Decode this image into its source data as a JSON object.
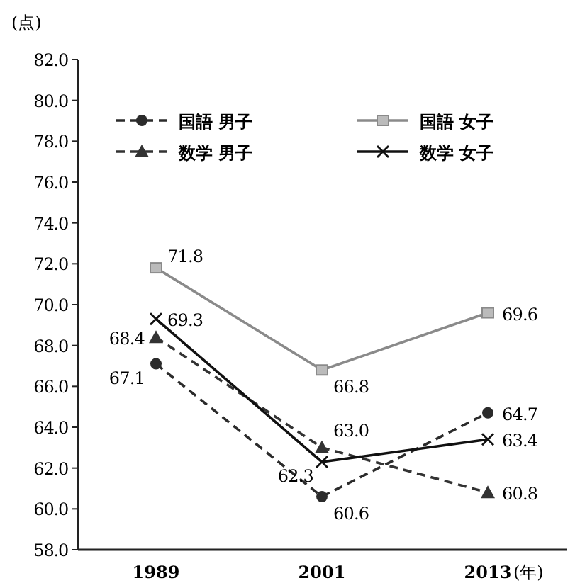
{
  "chart_data": {
    "type": "line",
    "xlabel": "(年)",
    "ylabel": "(点)",
    "categories": [
      "1989",
      "2001",
      "2013"
    ],
    "ylim": [
      58,
      82
    ],
    "yticks": [
      {
        "value": 58,
        "label": "58.0"
      },
      {
        "value": 60,
        "label": "60.0"
      },
      {
        "value": 62,
        "label": "62.0"
      },
      {
        "value": 64,
        "label": "64.0"
      },
      {
        "value": 66,
        "label": "66.0"
      },
      {
        "value": 68,
        "label": "68.0"
      },
      {
        "value": 70,
        "label": "70.0"
      },
      {
        "value": 72,
        "label": "72.0"
      },
      {
        "value": 74,
        "label": "74.0"
      },
      {
        "value": 76,
        "label": "76.0"
      },
      {
        "value": 78,
        "label": "78.0"
      },
      {
        "value": 80,
        "label": "80.0"
      },
      {
        "value": 82,
        "label": "82.0"
      }
    ],
    "series": [
      {
        "name": "国語 男子",
        "color": "#2b2b2b",
        "marker": "circle",
        "line_style": "dashed",
        "values": [
          67.1,
          60.6,
          64.7
        ],
        "value_labels": [
          "67.1",
          "60.6",
          "64.7"
        ]
      },
      {
        "name": "国語 女子",
        "color": "#8a8a8a",
        "marker": "square",
        "line_style": "solid",
        "values": [
          71.8,
          66.8,
          69.6
        ],
        "value_labels": [
          "71.8",
          "66.8",
          "69.6"
        ]
      },
      {
        "name": "数学 男子",
        "color": "#333333",
        "marker": "triangle",
        "line_style": "dashed",
        "values": [
          68.4,
          63.0,
          60.8
        ],
        "value_labels": [
          "68.4",
          "63.0",
          "60.8"
        ]
      },
      {
        "name": "数学 女子",
        "color": "#111111",
        "marker": "cross",
        "line_style": "solid",
        "values": [
          69.3,
          62.3,
          63.4
        ],
        "value_labels": [
          "69.3",
          "62.3",
          "63.4"
        ]
      }
    ],
    "legend": "top",
    "grid": false
  }
}
